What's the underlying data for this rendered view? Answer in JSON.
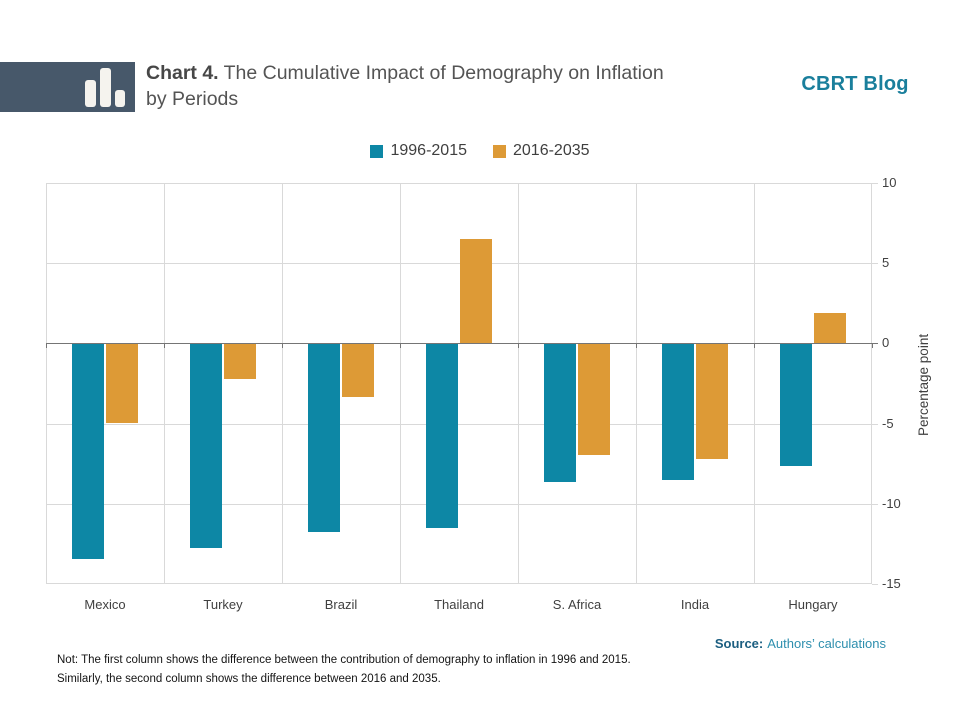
{
  "header": {
    "title_label": "Chart 4.",
    "title_text": "The Cumulative Impact of Demography on Inflation by Periods",
    "brand": "CBRT Blog"
  },
  "legend": [
    {
      "label": "1996-2015",
      "color": "#0d87a5"
    },
    {
      "label": "2016-2035",
      "color": "#dd9a36"
    }
  ],
  "chart_data": {
    "type": "bar",
    "title": "Chart 4. The Cumulative Impact of Demography on Inflation by Periods",
    "categories": [
      "Mexico",
      "Turkey",
      "Brazil",
      "Thailand",
      "S. Africa",
      "India",
      "Hungary"
    ],
    "series": [
      {
        "name": "1996-2015",
        "color": "#0d87a5",
        "values": [
          -13.4,
          -12.7,
          -11.7,
          -11.5,
          -8.6,
          -8.5,
          -7.6
        ]
      },
      {
        "name": "2016-2035",
        "color": "#dd9a36",
        "values": [
          -4.9,
          -2.2,
          -3.3,
          6.5,
          -6.9,
          -7.2,
          1.9
        ]
      }
    ],
    "xlabel": "",
    "ylabel": "Percentage point",
    "ylim": [
      -15,
      10
    ],
    "yticks": [
      10,
      5,
      0,
      -5,
      -10,
      -15
    ],
    "grid": true,
    "legend_position": "top-center"
  },
  "footer": {
    "note_line1": "Not: The first column shows the difference between the contribution of demography to inflation in 1996 and 2015.",
    "note_line2": "Similarly, the second column shows the difference between 2016 and 2035.",
    "source_label": "Source:",
    "source_text": "Authors’ calculations"
  },
  "colors": {
    "teal": "#0d87a5",
    "orange": "#dd9a36",
    "slate": "#47586a",
    "brand": "#1a7f9c",
    "grid": "#d9d9d9",
    "zero": "#757575",
    "source_label": "#1b5e80",
    "source_value": "#2e8fae"
  }
}
